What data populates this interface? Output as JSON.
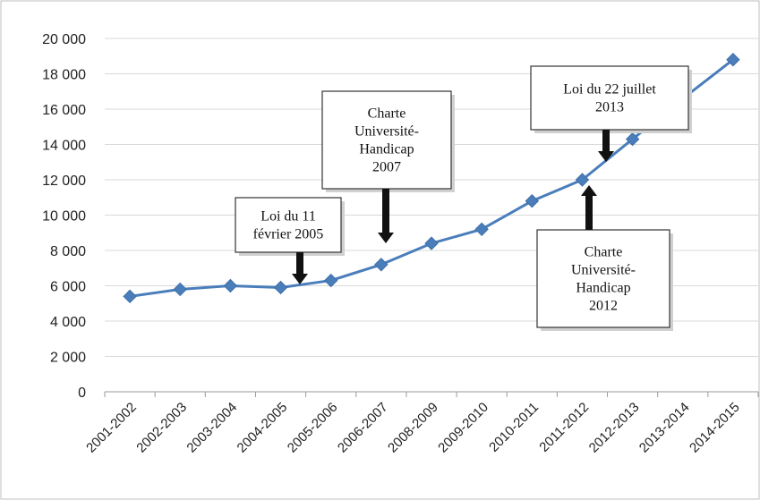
{
  "chart_data": {
    "type": "line",
    "title": "",
    "xlabel": "",
    "ylabel": "",
    "categories": [
      "2001-2002",
      "2002-2003",
      "2003-2004",
      "2004-2005",
      "2005-2006",
      "2006-2007",
      "2008-2009",
      "2009-2010",
      "2010-2011",
      "2011-2012",
      "2012-2013",
      "2013-2014",
      "2014-2015"
    ],
    "series": [
      {
        "values": [
          5400,
          5800,
          6000,
          5900,
          6300,
          7200,
          8400,
          9200,
          10800,
          12000,
          14300,
          16600,
          18800
        ]
      }
    ],
    "ylim": [
      0,
      20000
    ],
    "y_ticks": [
      0,
      2000,
      4000,
      6000,
      8000,
      10000,
      12000,
      14000,
      16000,
      18000,
      20000
    ],
    "y_tick_labels": [
      "0",
      "2 000",
      "4 000",
      "6 000",
      "8 000",
      "10 000",
      "12 000",
      "14 000",
      "16 000",
      "18 000",
      "20 000"
    ],
    "grid": true,
    "legend": "none",
    "line_color": "#4a7ebb",
    "marker": "diamond",
    "annotations": [
      {
        "lines": [
          "Loi du 11",
          "février 2005"
        ],
        "category_index": 3.5,
        "arrow": "down"
      },
      {
        "lines": [
          "Charte",
          "Université-",
          "Handicap",
          "2007"
        ],
        "category_index": 5,
        "arrow": "down"
      },
      {
        "lines": [
          "Loi du 22 juillet",
          "2013"
        ],
        "category_index": 9.5,
        "arrow": "down"
      },
      {
        "lines": [
          "Charte",
          "Université-",
          "Handicap",
          "2012"
        ],
        "category_index": 9,
        "arrow": "up"
      }
    ]
  }
}
